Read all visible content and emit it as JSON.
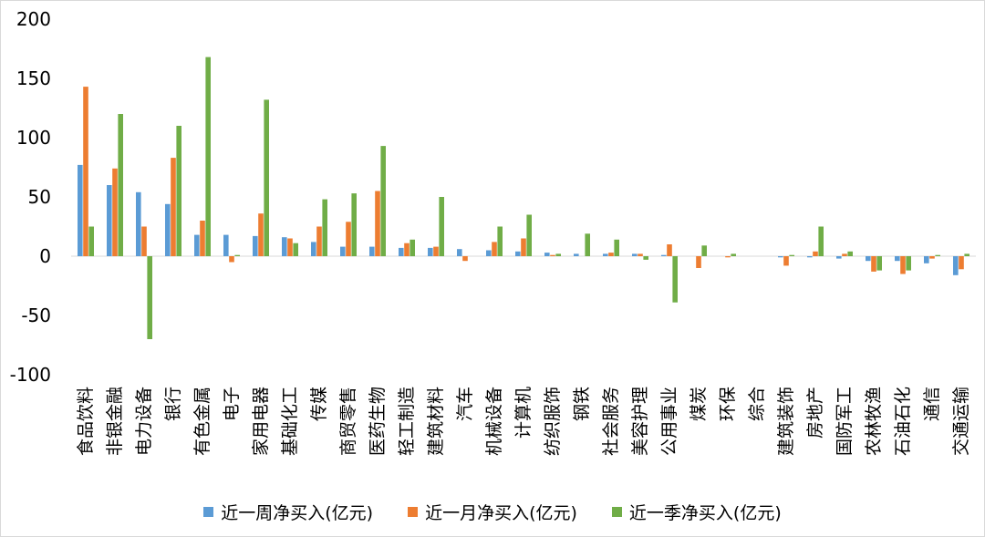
{
  "chart_data": {
    "type": "bar",
    "title": "",
    "xlabel": "",
    "ylabel": "",
    "ylim": [
      -100,
      200
    ],
    "yticks": [
      -100,
      -50,
      0,
      50,
      100,
      150,
      200
    ],
    "grid": false,
    "legend_position": "bottom",
    "categories": [
      "食品饮料",
      "非银金融",
      "电力设备",
      "银行",
      "有色金属",
      "电子",
      "家用电器",
      "基础化工",
      "传媒",
      "商贸零售",
      "医药生物",
      "轻工制造",
      "建筑材料",
      "汽车",
      "机械设备",
      "计算机",
      "纺织服饰",
      "钢铁",
      "社会服务",
      "美容护理",
      "公用事业",
      "煤炭",
      "环保",
      "综合",
      "建筑装饰",
      "房地产",
      "国防军工",
      "农林牧渔",
      "石油石化",
      "通信",
      "交通运输"
    ],
    "series": [
      {
        "name": "近一周净买入(亿元)",
        "color": "#5b9bd5",
        "values": [
          77,
          60,
          54,
          44,
          18,
          18,
          17,
          16,
          12,
          8,
          8,
          7,
          7,
          6,
          5,
          4,
          3,
          2,
          2,
          2,
          1,
          0,
          0,
          0,
          -1,
          -1,
          -2,
          -4,
          -4,
          -6,
          -16
        ]
      },
      {
        "name": "近一月净买入(亿元)",
        "color": "#ed7d31",
        "values": [
          143,
          74,
          25,
          83,
          30,
          -5,
          36,
          15,
          25,
          29,
          55,
          11,
          8,
          -4,
          12,
          15,
          1,
          0,
          3,
          2,
          10,
          -10,
          -1,
          0,
          -8,
          4,
          2,
          -13,
          -15,
          -2,
          -11
        ]
      },
      {
        "name": "近一季净买入(亿元)",
        "color": "#70ad47",
        "values": [
          25,
          120,
          -70,
          110,
          168,
          1,
          132,
          11,
          48,
          53,
          93,
          14,
          50,
          0,
          25,
          35,
          2,
          19,
          14,
          -3,
          -39,
          9,
          2,
          0,
          1,
          25,
          4,
          -12,
          -12,
          1,
          2
        ]
      }
    ]
  }
}
